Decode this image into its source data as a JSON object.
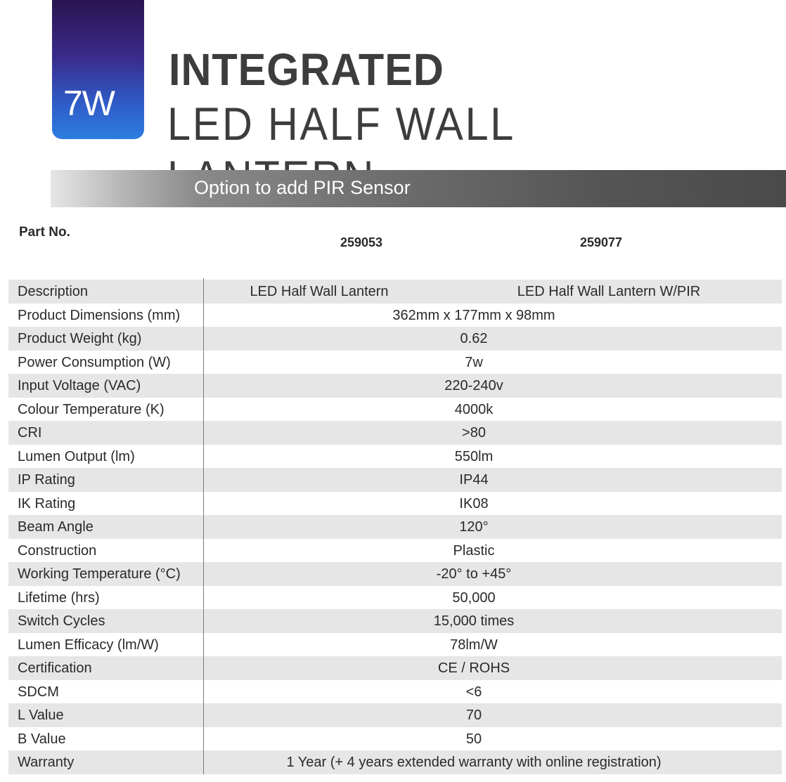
{
  "badge": {
    "wattage": "7W"
  },
  "title": {
    "line1": "INTEGRATED",
    "line2": "LED HALF WALL LANTERN"
  },
  "banner": {
    "text": "Option to add PIR Sensor"
  },
  "part_numbers": {
    "label": "Part No.",
    "values": [
      "259053",
      "259077"
    ]
  },
  "specs": {
    "description": {
      "label": "Description",
      "values": [
        "LED Half Wall Lantern",
        "LED Half Wall Lantern W/PIR"
      ]
    },
    "rows": [
      {
        "label": "Product Dimensions (mm)",
        "value": "362mm x 177mm x 98mm"
      },
      {
        "label": "Product Weight (kg)",
        "value": "0.62"
      },
      {
        "label": "Power Consumption (W)",
        "value": "7w"
      },
      {
        "label": "Input Voltage (VAC)",
        "value": "220-240v"
      },
      {
        "label": "Colour Temperature (K)",
        "value": "4000k"
      },
      {
        "label": "CRI",
        "value": ">80"
      },
      {
        "label": "Lumen Output (lm)",
        "value": "550lm"
      },
      {
        "label": "IP Rating",
        "value": "IP44"
      },
      {
        "label": "IK Rating",
        "value": "IK08"
      },
      {
        "label": "Beam Angle",
        "value": "120°"
      },
      {
        "label": "Construction",
        "value": "Plastic"
      },
      {
        "label": "Working Temperature (°C)",
        "value": "-20° to +45°"
      },
      {
        "label": "Lifetime (hrs)",
        "value": "50,000"
      },
      {
        "label": "Switch Cycles",
        "value": "15,000 times"
      },
      {
        "label": "Lumen Efficacy (lm/W)",
        "value": "78lm/W"
      },
      {
        "label": "Certification",
        "value": "CE / ROHS"
      },
      {
        "label": "SDCM",
        "value": "<6"
      },
      {
        "label": "L Value",
        "value": "70"
      },
      {
        "label": "B Value",
        "value": "50"
      },
      {
        "label": "Warranty",
        "value": "1 Year (+ 4 years extended warranty with online registration)"
      }
    ]
  },
  "colors": {
    "badge_top": "#2a1550",
    "badge_bottom": "#2e7de0",
    "title_text": "#3d3d3d",
    "row_shade": "#e6e6e6",
    "banner_dark": "#4a4a4a"
  }
}
